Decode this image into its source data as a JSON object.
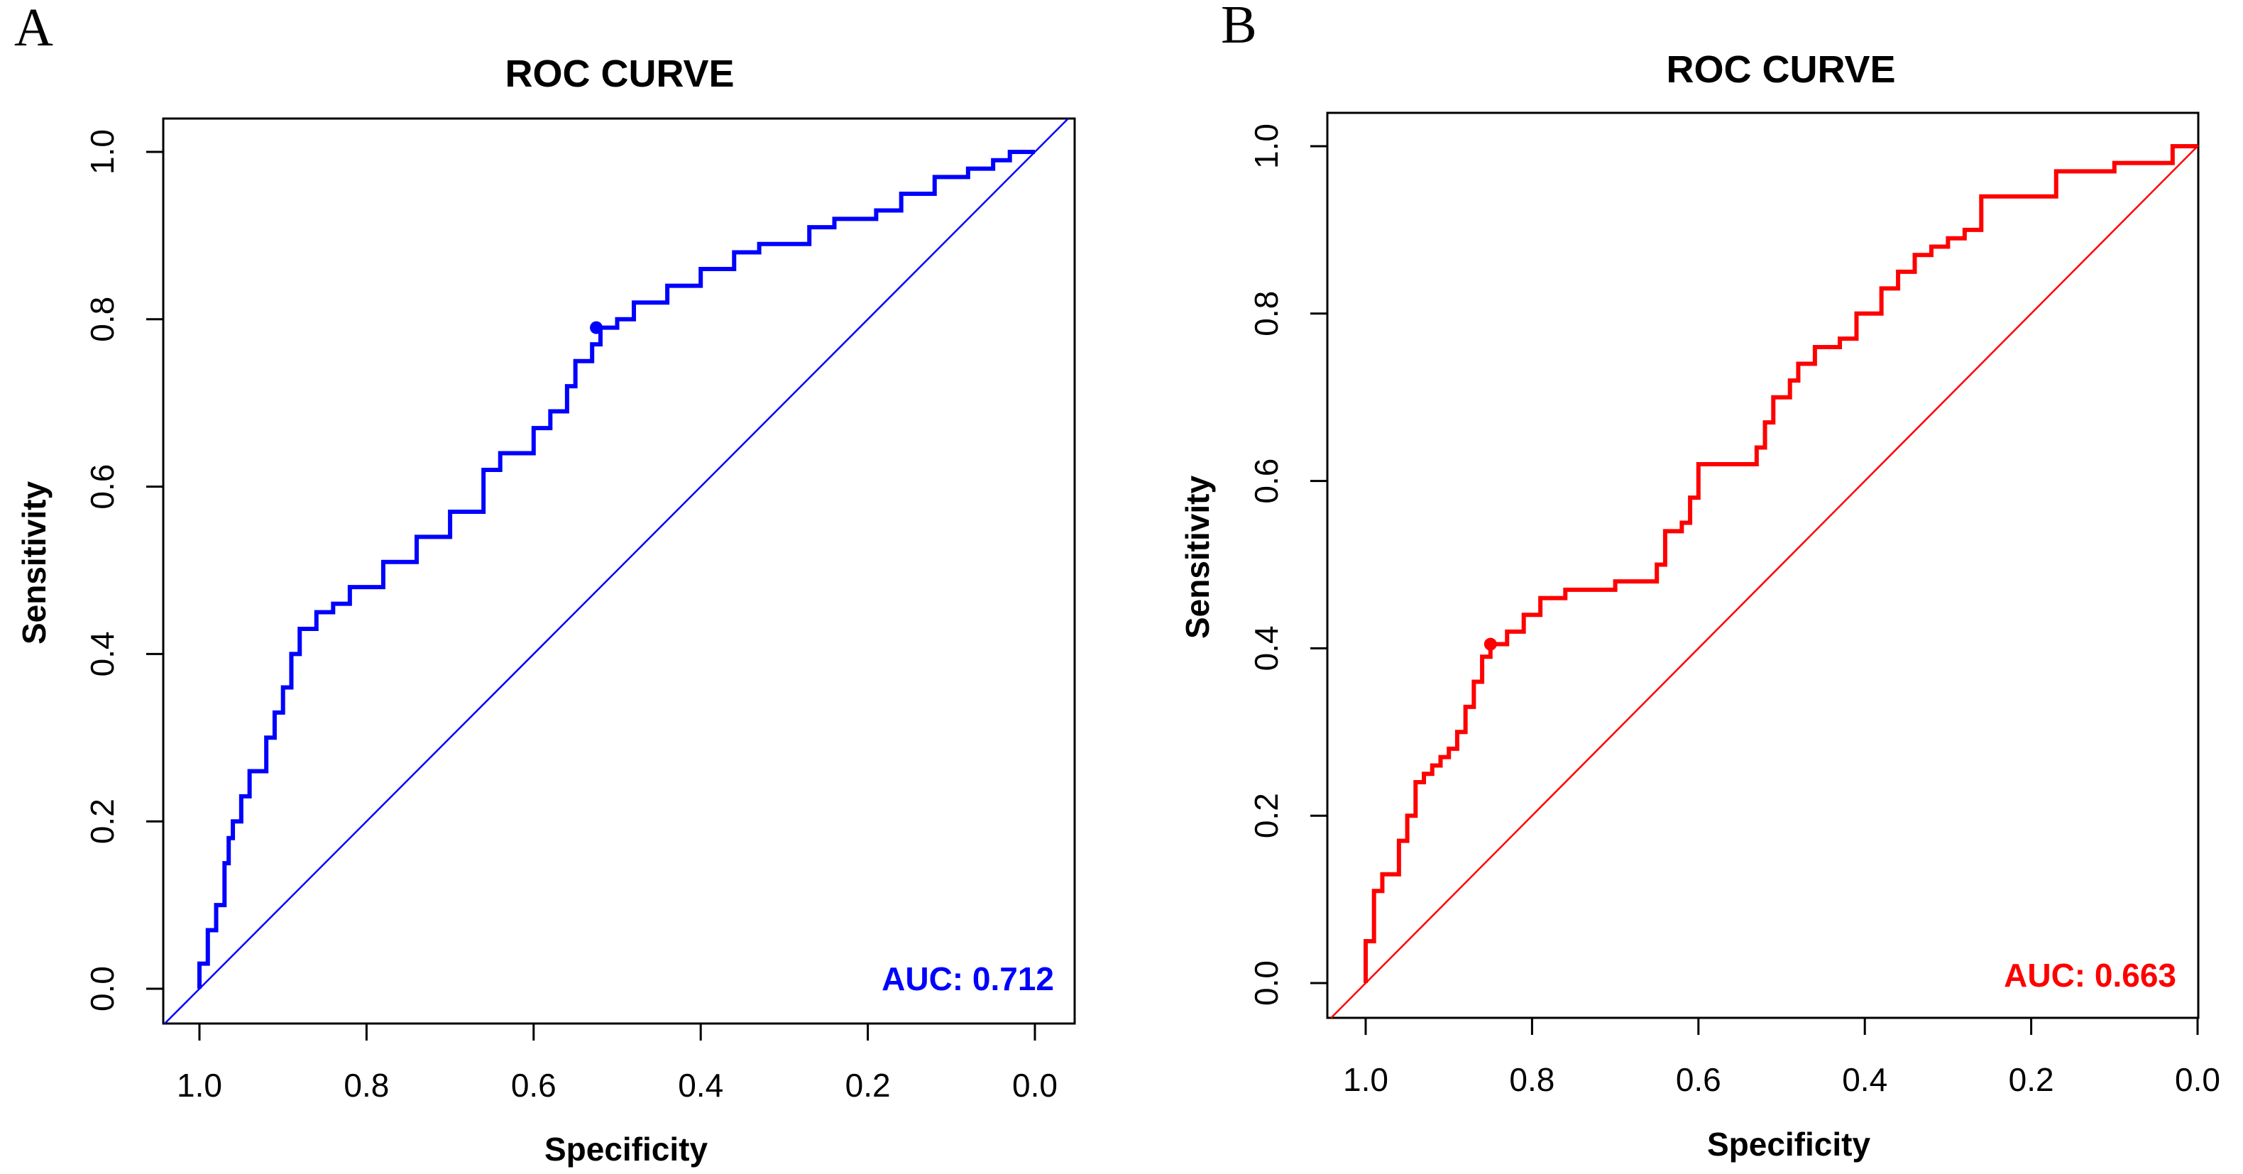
{
  "chart_data": [
    {
      "panel": "A",
      "type": "line",
      "title": "ROC CURVE",
      "xlabel": "Specificity",
      "ylabel": "Sensitivity",
      "xlim": [
        1.0,
        0.0
      ],
      "ylim": [
        0.0,
        1.0
      ],
      "x_reversed": true,
      "xticks": [
        "1.0",
        "0.8",
        "0.6",
        "0.4",
        "0.2",
        "0.0"
      ],
      "yticks": [
        "0.0",
        "0.2",
        "0.4",
        "0.6",
        "0.8",
        "1.0"
      ],
      "grid": false,
      "color": "#0000ff",
      "auc_label": "AUC: 0.712",
      "threshold_point": {
        "specificity": 0.525,
        "sensitivity": 0.79
      },
      "series": [
        {
          "specificity": [
            1.0,
            1.0,
            0.99,
            0.98,
            0.97,
            0.965,
            0.96,
            0.95,
            0.94,
            0.92,
            0.91,
            0.9,
            0.89,
            0.88,
            0.86,
            0.84,
            0.82,
            0.78,
            0.74,
            0.7,
            0.66,
            0.64,
            0.6,
            0.58,
            0.56,
            0.55,
            0.53,
            0.52,
            0.5,
            0.48,
            0.44,
            0.4,
            0.36,
            0.33,
            0.3,
            0.27,
            0.24,
            0.19,
            0.16,
            0.12,
            0.08,
            0.05,
            0.03,
            0.0
          ],
          "sensitivity": [
            0.0,
            0.03,
            0.07,
            0.1,
            0.15,
            0.18,
            0.2,
            0.23,
            0.26,
            0.3,
            0.33,
            0.36,
            0.4,
            0.43,
            0.45,
            0.46,
            0.48,
            0.51,
            0.54,
            0.57,
            0.62,
            0.64,
            0.67,
            0.69,
            0.72,
            0.75,
            0.77,
            0.79,
            0.8,
            0.82,
            0.84,
            0.86,
            0.88,
            0.89,
            0.89,
            0.91,
            0.92,
            0.93,
            0.95,
            0.97,
            0.98,
            0.99,
            1.0,
            1.0
          ]
        }
      ]
    },
    {
      "panel": "B",
      "type": "line",
      "title": "ROC CURVE",
      "xlabel": "Specificity",
      "ylabel": "Sensitivity",
      "xlim": [
        1.0,
        0.0
      ],
      "ylim": [
        0.0,
        1.0
      ],
      "x_reversed": true,
      "xticks": [
        "1.0",
        "0.8",
        "0.6",
        "0.4",
        "0.2",
        "0.0"
      ],
      "yticks": [
        "0.0",
        "0.2",
        "0.4",
        "0.6",
        "0.8",
        "1.0"
      ],
      "grid": false,
      "color": "#ff0000",
      "auc_label": "AUC: 0.663",
      "threshold_point": {
        "specificity": 0.85,
        "sensitivity": 0.405
      },
      "series": [
        {
          "specificity": [
            1.0,
            1.0,
            0.99,
            0.98,
            0.98,
            0.96,
            0.95,
            0.94,
            0.93,
            0.92,
            0.91,
            0.9,
            0.89,
            0.88,
            0.87,
            0.86,
            0.85,
            0.83,
            0.81,
            0.79,
            0.76,
            0.7,
            0.65,
            0.64,
            0.62,
            0.61,
            0.6,
            0.58,
            0.55,
            0.53,
            0.52,
            0.51,
            0.49,
            0.48,
            0.46,
            0.43,
            0.41,
            0.38,
            0.36,
            0.34,
            0.32,
            0.3,
            0.28,
            0.26,
            0.2,
            0.17,
            0.1,
            0.05,
            0.03,
            0.0
          ],
          "sensitivity": [
            0.0,
            0.05,
            0.11,
            0.12,
            0.13,
            0.17,
            0.2,
            0.24,
            0.25,
            0.26,
            0.27,
            0.28,
            0.3,
            0.33,
            0.36,
            0.39,
            0.405,
            0.42,
            0.44,
            0.46,
            0.47,
            0.48,
            0.5,
            0.54,
            0.55,
            0.58,
            0.62,
            0.62,
            0.62,
            0.64,
            0.67,
            0.7,
            0.72,
            0.74,
            0.76,
            0.77,
            0.8,
            0.83,
            0.85,
            0.87,
            0.88,
            0.89,
            0.9,
            0.94,
            0.94,
            0.97,
            0.98,
            0.98,
            1.0,
            1.0
          ]
        }
      ]
    }
  ]
}
